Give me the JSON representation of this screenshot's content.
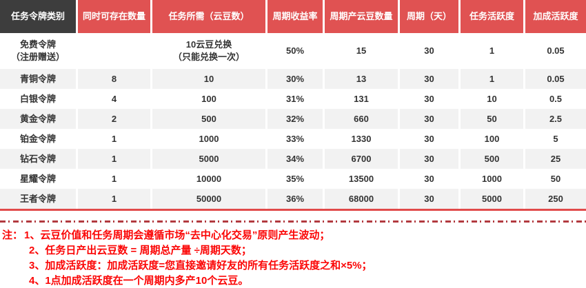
{
  "colors": {
    "header_red": "#e05252",
    "header_dark": "#3d3d3d",
    "table_bottom_border": "#e14b4b",
    "alt_row_gray": "#f2f2f2",
    "note_red": "#fb0505",
    "divider_red": "#b23a3f",
    "cell_text": "#333333"
  },
  "table": {
    "headers": [
      "任务令牌类别",
      "同时可存在数量",
      "任务所需（云豆数）",
      "周期收益率",
      "周期产云豆数量",
      "周期（天）",
      "任务活跃度",
      "加成活跃度"
    ],
    "rows": [
      [
        "免费令牌\n（注册赠送）",
        "",
        "10云豆兑换\n（只能兑换一次）",
        "50%",
        "15",
        "30",
        "1",
        "0.05"
      ],
      [
        "青铜令牌",
        "8",
        "10",
        "30%",
        "13",
        "30",
        "1",
        "0.05"
      ],
      [
        "白银令牌",
        "4",
        "100",
        "31%",
        "131",
        "30",
        "10",
        "0.5"
      ],
      [
        "黄金令牌",
        "2",
        "500",
        "32%",
        "660",
        "30",
        "50",
        "2.5"
      ],
      [
        "铂金令牌",
        "1",
        "1000",
        "33%",
        "1330",
        "30",
        "100",
        "5"
      ],
      [
        "钻石令牌",
        "1",
        "5000",
        "34%",
        "6700",
        "30",
        "500",
        "25"
      ],
      [
        "星耀令牌",
        "1",
        "10000",
        "35%",
        "13500",
        "30",
        "1000",
        "50"
      ],
      [
        "王者令牌",
        "1",
        "50000",
        "36%",
        "68000",
        "30",
        "5000",
        "250"
      ]
    ]
  },
  "notes": {
    "prefix": "注：",
    "items": [
      "1、云豆价值和任务周期会遵循市场“去中心化交易”原则产生波动；",
      "2、任务日产出云豆数 = 周期总产量 ÷周期天数；",
      "3、加成活跃度：加成活跃度=您直接邀请好友的所有任务活跃度之和×5%；",
      "4、1点加成活跃度在一个周期内多产10个云豆。"
    ]
  }
}
